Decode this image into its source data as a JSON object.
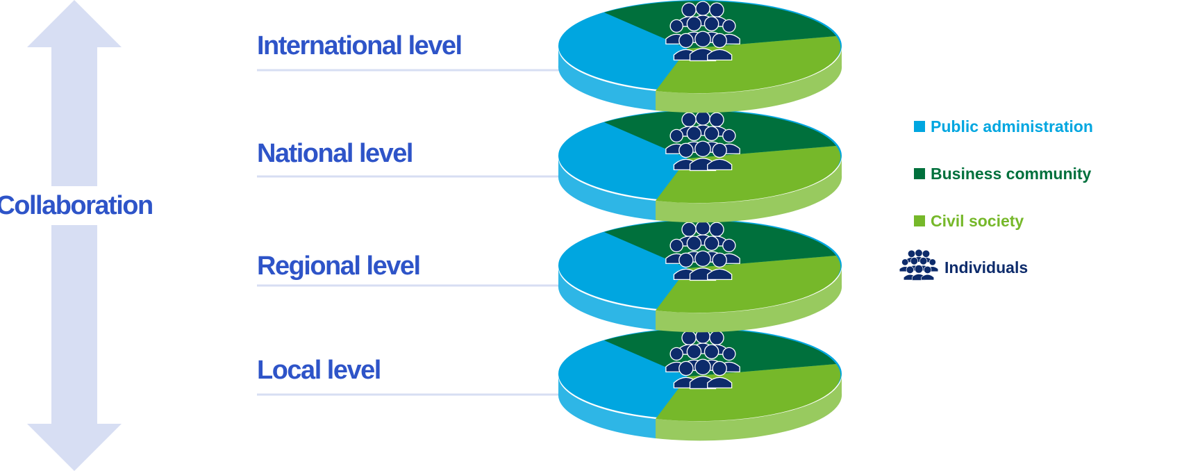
{
  "colors": {
    "public_administration": "#00A6E0",
    "business_community": "#00703C",
    "civil_society": "#76B82A",
    "individuals_icon": "#0D2B6B",
    "level_label": "#2E54C8",
    "arrow": "#D7DEF3",
    "divider": "#D7DEF3"
  },
  "collaboration": {
    "label": "Collaboration",
    "arrow_icon": "double-vertical-arrow-icon"
  },
  "levels": [
    {
      "label": "International level",
      "icon": "people-group-icon"
    },
    {
      "label": "National level",
      "icon": "people-group-icon"
    },
    {
      "label": "Regional level",
      "icon": "people-group-icon"
    },
    {
      "label": "Local level",
      "icon": "people-group-icon"
    }
  ],
  "legend": [
    {
      "label": "Public administration",
      "color": "#00A6E0",
      "marker": "square"
    },
    {
      "label": "Business community",
      "color": "#00703C",
      "marker": "square"
    },
    {
      "label": "Civil society",
      "color": "#76B82A",
      "marker": "square"
    },
    {
      "label": "Individuals",
      "color": "#0D2B6B",
      "marker": "people-group-icon"
    }
  ]
}
